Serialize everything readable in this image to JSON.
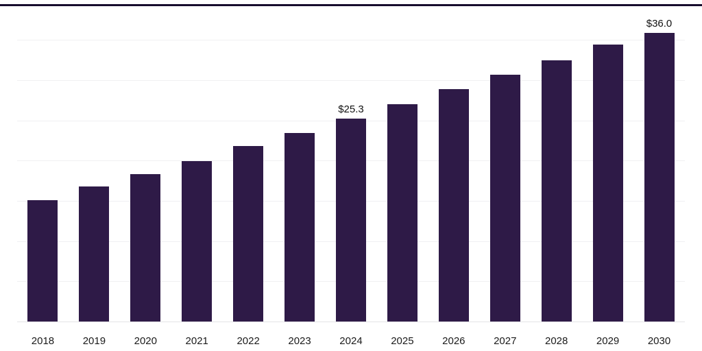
{
  "chart_data": {
    "type": "bar",
    "title": "",
    "xlabel": "",
    "ylabel": "",
    "categories": [
      "2018",
      "2019",
      "2020",
      "2021",
      "2022",
      "2023",
      "2024",
      "2025",
      "2026",
      "2027",
      "2028",
      "2029",
      "2030"
    ],
    "values": [
      15.2,
      16.9,
      18.4,
      20.0,
      21.9,
      23.5,
      25.3,
      27.1,
      29.0,
      30.8,
      32.6,
      34.5,
      36.0
    ],
    "point_labels": [
      {
        "category": "2024",
        "text": "$25.3"
      },
      {
        "category": "2030",
        "text": "$36.0"
      }
    ],
    "ylim": [
      0,
      39.3
    ],
    "gridline_values": [
      5,
      10,
      15,
      20,
      25,
      30,
      35
    ],
    "grid": "horizontal",
    "legend": "none",
    "bar_color": "#2e1a47",
    "top_border_color": "#160c2d",
    "tick_label_color": "#1a1a1a"
  }
}
